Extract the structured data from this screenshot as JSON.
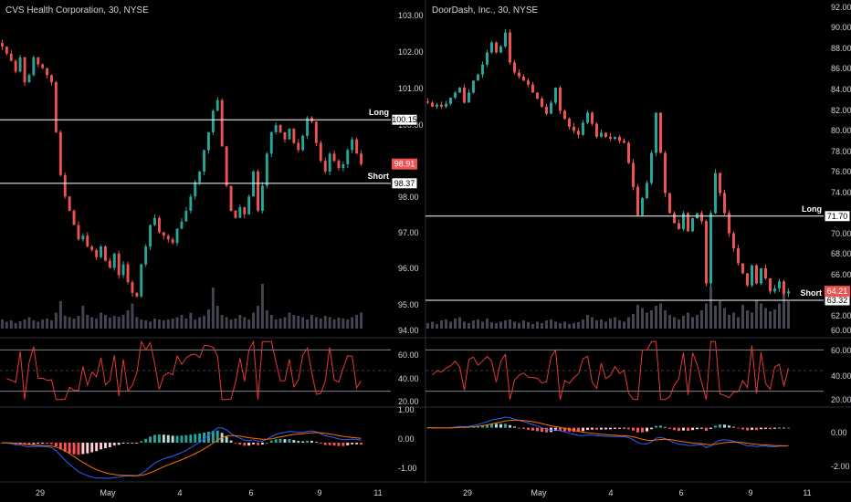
{
  "colors": {
    "background": "#000000",
    "up": "#26a69a",
    "down": "#ef5350",
    "volume": "#434651",
    "rsi": "#e53935",
    "macd": "#2962ff",
    "signal": "#ff6d00",
    "hist_up_strong": "#26a69a",
    "hist_up_weak": "#b2dfdb",
    "hist_down_strong": "#ff5252",
    "hist_down_weak": "#ffcdd2",
    "grid_line": "#ffffff",
    "text": "#d1d4dc"
  },
  "panels": [
    {
      "title": "CVS Health Corporation, 30, NYSE",
      "price_ticks": [
        "103.00",
        "102.00",
        "101.00",
        "100.00",
        "98.00",
        "97.00",
        "96.00",
        "95.00",
        "94.00"
      ],
      "long_label": "Long",
      "long_value": "100.15",
      "short_label": "Short",
      "short_value": "98.37",
      "last_price": "98.91",
      "rsi_ticks": [
        "60.00",
        "40.00",
        "20.00"
      ],
      "macd_ticks": [
        "1.00",
        "0.00",
        "-1.00"
      ],
      "date_labels": [
        "29",
        "May",
        "4",
        "6",
        "9",
        "11"
      ]
    },
    {
      "title": "DoorDash, Inc., 30, NYSE",
      "price_ticks": [
        "92.00",
        "90.00",
        "88.00",
        "86.00",
        "84.00",
        "82.00",
        "80.00",
        "78.00",
        "76.00",
        "74.00",
        "70.00",
        "68.00",
        "66.00",
        "62.00",
        "60.00"
      ],
      "long_label": "Long",
      "long_value": "71.70",
      "short_label": "Short",
      "short_value": "63.32",
      "last_price": "64.21",
      "rsi_ticks": [
        "60.00",
        "40.00",
        "20.00"
      ],
      "macd_ticks": [
        "0.00",
        "-2.00"
      ],
      "date_labels": [
        "29",
        "May",
        "4",
        "6",
        "9",
        "11"
      ]
    }
  ],
  "chart_data": [
    {
      "type": "candlestick",
      "title": "CVS Health Corporation, 30, NYSE",
      "y_range": [
        94.3,
        103.3
      ],
      "long_level": 100.15,
      "short_level": 98.37,
      "last_price": 98.91,
      "rsi_levels": [
        70,
        30
      ],
      "rsi_range": [
        20,
        80
      ],
      "macd_range": [
        -1.2,
        1.2
      ],
      "close_path": [
        102.2,
        102.0,
        101.8,
        101.5,
        101.9,
        101.2,
        101.4,
        101.9,
        101.7,
        101.6,
        101.4,
        101.2,
        99.8,
        98.6,
        98.0,
        97.6,
        97.2,
        96.8,
        96.9,
        96.6,
        96.5,
        96.3,
        96.6,
        96.2,
        96.0,
        96.4,
        95.8,
        96.1,
        95.6,
        95.3,
        95.2,
        96.1,
        96.6,
        97.2,
        97.4,
        97.0,
        96.9,
        96.8,
        96.7,
        97.1,
        97.3,
        97.6,
        98.0,
        98.4,
        98.7,
        99.3,
        99.8,
        100.4,
        100.7,
        99.4,
        98.3,
        97.6,
        97.4,
        97.7,
        97.5,
        98.0,
        98.7,
        97.6,
        98.3,
        99.2,
        99.8,
        100.0,
        99.8,
        99.6,
        99.9,
        99.5,
        99.3,
        99.7,
        100.2,
        100.1,
        99.5,
        99.0,
        98.7,
        99.2,
        99.0,
        98.8,
        98.9,
        99.3,
        99.6,
        99.2,
        98.91
      ],
      "volume": [
        0.2,
        0.15,
        0.18,
        0.12,
        0.16,
        0.2,
        0.25,
        0.18,
        0.15,
        0.2,
        0.22,
        0.18,
        0.35,
        0.6,
        0.28,
        0.25,
        0.22,
        0.28,
        0.5,
        0.3,
        0.25,
        0.22,
        0.35,
        0.3,
        0.24,
        0.28,
        0.26,
        0.3,
        0.4,
        0.55,
        0.25,
        0.2,
        0.18,
        0.15,
        0.22,
        0.2,
        0.18,
        0.2,
        0.22,
        0.25,
        0.3,
        0.22,
        0.35,
        0.2,
        0.25,
        0.28,
        0.42,
        0.9,
        0.5,
        0.3,
        0.25,
        0.2,
        0.22,
        0.3,
        0.25,
        0.2,
        0.35,
        0.5,
        0.98,
        0.4,
        0.3,
        0.2,
        0.22,
        0.25,
        0.35,
        0.3,
        0.28,
        0.25,
        0.2,
        0.3,
        0.25,
        0.22,
        0.28,
        0.25,
        0.2,
        0.24,
        0.22,
        0.2,
        0.25,
        0.3,
        0.35
      ]
    },
    {
      "type": "candlestick",
      "title": "DoorDash, Inc., 30, NYSE",
      "y_range": [
        60.5,
        92.5
      ],
      "long_level": 71.7,
      "short_level": 63.32,
      "last_price": 64.21,
      "rsi_levels": [
        70,
        30
      ],
      "rsi_range": [
        20,
        80
      ],
      "macd_range": [
        -2.6,
        1.0
      ],
      "close_path": [
        83.0,
        82.6,
        82.8,
        82.6,
        82.9,
        83.5,
        84.0,
        84.5,
        83.0,
        84.0,
        85.2,
        85.8,
        86.8,
        88.0,
        89.0,
        88.0,
        88.6,
        90.0,
        87.0,
        86.0,
        85.6,
        85.2,
        84.8,
        84.0,
        83.4,
        82.6,
        81.9,
        83.0,
        84.5,
        82.2,
        81.4,
        80.6,
        80.2,
        79.8,
        81.0,
        82.0,
        80.9,
        79.6,
        80.0,
        79.6,
        79.4,
        79.6,
        79.2,
        79.0,
        77.0,
        74.6,
        71.8,
        73.5,
        75.0,
        78.0,
        82.0,
        78.0,
        74.0,
        72.0,
        71.0,
        70.4,
        72.0,
        70.2,
        71.5,
        72.0,
        71.2,
        65.0,
        72.0,
        76.0,
        74.0,
        72.0,
        70.0,
        68.5,
        67.0,
        66.0,
        64.8,
        66.8,
        65.0,
        66.5,
        65.5,
        64.2,
        64.5,
        65.2,
        64.0,
        64.21
      ],
      "volume": [
        0.12,
        0.15,
        0.1,
        0.18,
        0.2,
        0.15,
        0.22,
        0.25,
        0.15,
        0.12,
        0.18,
        0.2,
        0.15,
        0.22,
        0.14,
        0.12,
        0.15,
        0.18,
        0.2,
        0.15,
        0.12,
        0.18,
        0.14,
        0.1,
        0.15,
        0.12,
        0.18,
        0.2,
        0.15,
        0.12,
        0.15,
        0.1,
        0.12,
        0.14,
        0.2,
        0.3,
        0.25,
        0.18,
        0.2,
        0.15,
        0.22,
        0.25,
        0.18,
        0.15,
        0.25,
        0.32,
        0.52,
        0.45,
        0.35,
        0.4,
        0.5,
        0.55,
        0.4,
        0.3,
        0.25,
        0.2,
        0.28,
        0.35,
        0.25,
        0.3,
        0.4,
        0.55,
        0.92,
        0.5,
        0.6,
        0.45,
        0.3,
        0.35,
        0.25,
        0.52,
        0.4,
        0.35,
        0.62,
        0.55,
        0.45,
        0.38,
        0.42,
        0.55,
        0.85,
        0.6
      ]
    }
  ]
}
